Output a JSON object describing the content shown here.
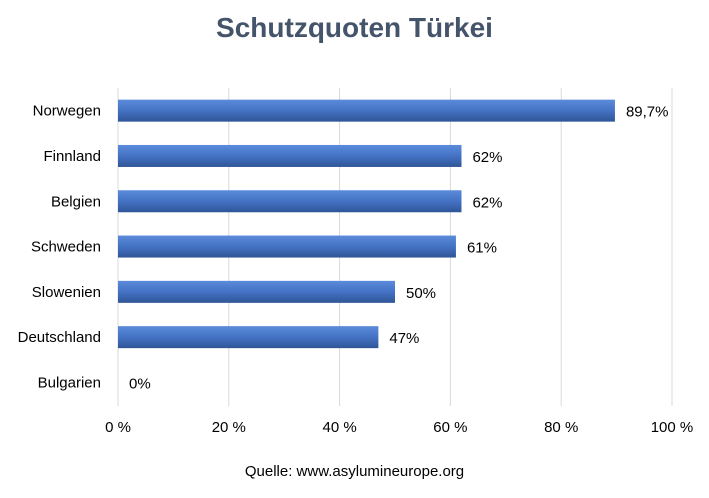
{
  "chart_data": {
    "type": "bar",
    "orientation": "horizontal",
    "title": "Schutzquoten Türkei",
    "categories": [
      "Norwegen",
      "Finnland",
      "Belgien",
      "Schweden",
      "Slowenien",
      "Deutschland",
      "Bulgarien"
    ],
    "values": [
      89.7,
      62,
      62,
      61,
      50,
      47,
      0
    ],
    "data_labels": [
      "89,7%",
      "62%",
      "62%",
      "61%",
      "50%",
      "47%",
      "0%"
    ],
    "xlim": [
      0,
      100
    ],
    "x_ticks": [
      0,
      20,
      40,
      60,
      80,
      100
    ],
    "x_tick_labels": [
      "0 %",
      "20 %",
      "40 %",
      "60 %",
      "80 %",
      "100 %"
    ],
    "grid": true,
    "legend": "none",
    "bar_color": "#4472C4",
    "grid_color": "#D9D9D9",
    "title_color": "#44546A"
  },
  "source": "Quelle: www.asylumineurope.org"
}
